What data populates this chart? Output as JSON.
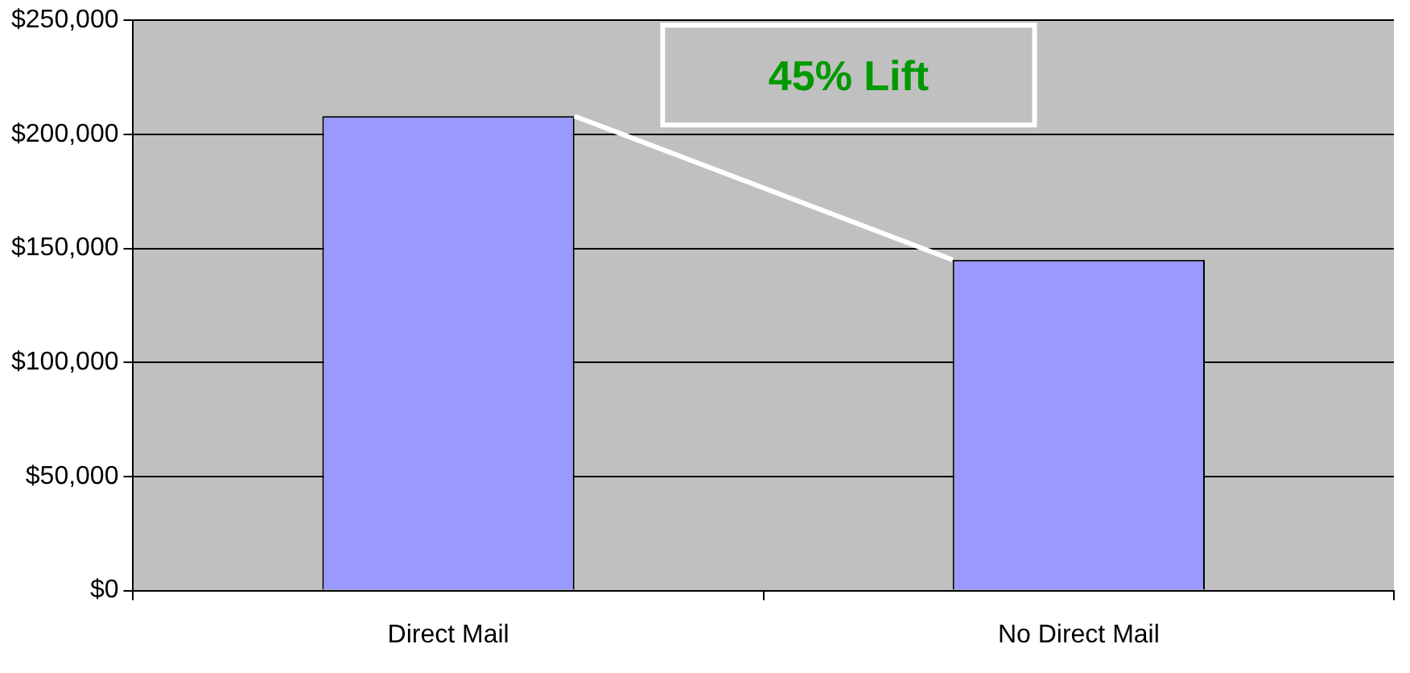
{
  "chart_data": {
    "type": "bar",
    "categories": [
      "Direct Mail",
      "No Direct Mail"
    ],
    "values": [
      208000,
      145000
    ],
    "color": "#9999ff",
    "ylim": [
      0,
      250000
    ],
    "yticks": [
      {
        "value": 0,
        "label": "$0"
      },
      {
        "value": 50000,
        "label": "$50,000"
      },
      {
        "value": 100000,
        "label": "$100,000"
      },
      {
        "value": 150000,
        "label": "$150,000"
      },
      {
        "value": 200000,
        "label": "$200,000"
      },
      {
        "value": 250000,
        "label": "$250,000"
      }
    ],
    "grid": "y",
    "annotations": [
      "45% Lift"
    ]
  }
}
